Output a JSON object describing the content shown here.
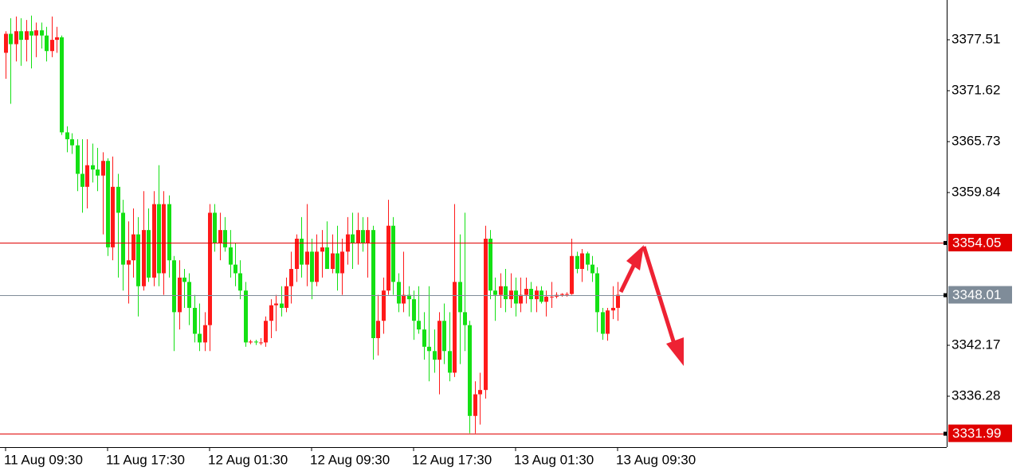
{
  "chart_data": {
    "type": "candlestick",
    "x": [
      "11 Aug 09:30",
      null,
      null,
      null,
      null,
      null,
      null,
      null,
      null,
      null,
      null,
      null,
      null,
      null,
      null,
      null,
      null,
      null,
      null,
      null,
      "11 Aug 17:30",
      null,
      null,
      null,
      null,
      null,
      null,
      null,
      null,
      null,
      null,
      null,
      null,
      null,
      null,
      null,
      null,
      null,
      null,
      null,
      "12 Aug 01:30",
      null,
      null,
      null,
      null,
      null,
      null,
      null,
      null,
      null,
      null,
      null,
      null,
      null,
      null,
      null,
      null,
      null,
      null,
      null,
      "12 Aug 09:30",
      null,
      null,
      null,
      null,
      null,
      null,
      null,
      null,
      null,
      null,
      null,
      null,
      null,
      null,
      null,
      null,
      null,
      null,
      null,
      "12 Aug 17:30",
      null,
      null,
      null,
      null,
      null,
      null,
      null,
      null,
      null,
      null,
      null,
      null,
      null,
      null,
      null,
      null,
      null,
      null,
      null,
      "13 Aug 01:30",
      null,
      null,
      null,
      null,
      null,
      null,
      null,
      null,
      null,
      null,
      null,
      null,
      null,
      null,
      null,
      null,
      null,
      null,
      null,
      "13 Aug 09:30"
    ],
    "open": [
      3376,
      3378.2,
      3377,
      3378.5,
      3377.5,
      3378.5,
      3378,
      3378.6,
      3378,
      3376.2,
      3377.5,
      3377.8,
      3366.8,
      3366,
      3365.3,
      3362,
      3360.5,
      3363,
      3362.5,
      3361.8,
      3363.5,
      3353.5,
      3360.5,
      3357.5,
      3351.5,
      3352,
      3355,
      3349,
      3355.5,
      3350,
      3358.5,
      3350.5,
      3358.5,
      3352,
      3346,
      3350,
      3349.5,
      3346.5,
      3343.5,
      3342.5,
      3344.5,
      3357.5,
      3354,
      3355.5,
      3353.5,
      3351.5,
      3350.5,
      3348.5,
      3342.5,
      3342.6,
      3342.5,
      3342.5,
      3345,
      3346.8,
      3347,
      3346.5,
      3349,
      3351,
      3354.5,
      3351.5,
      3353,
      3349.5,
      3353,
      3353.5,
      3351,
      3352.8,
      3350.5,
      3353,
      3355,
      3354,
      3355.5,
      3354,
      3355.5,
      3343,
      3345,
      3348.5,
      3356,
      3349.5,
      3347,
      3348,
      3347.5,
      3345,
      3344,
      3342,
      3341.5,
      3340.5,
      3345,
      3341.5,
      3339,
      3349.5,
      3346,
      3344.5,
      3334,
      3336.5,
      3337,
      3354.5,
      3348.5,
      3348,
      3349,
      3347.5,
      3348.5,
      3347,
      3348,
      3348.7,
      3347.5,
      3348.5,
      3347.2,
      3347.8,
      3347.8,
      3348,
      3348.1,
      3348.1,
      3352.5,
      3351,
      3352.8,
      3351.5,
      3350.5,
      3346,
      3343.5,
      3346.2,
      3346.5
    ],
    "high": [
      3378.5,
      3380,
      3380.2,
      3380,
      3379.8,
      3380.3,
      3379.5,
      3379.5,
      3379,
      3380.2,
      3379,
      3378,
      3367.5,
      3366.7,
      3366,
      3366,
      3366,
      3365.5,
      3365,
      3364.5,
      3363.8,
      3364,
      3362,
      3359,
      3356.5,
      3358,
      3357,
      3360,
      3358,
      3360,
      3363,
      3360,
      3359.5,
      3352.5,
      3352,
      3351,
      3350.5,
      3348,
      3347,
      3346,
      3358.5,
      3358.5,
      3357.5,
      3357,
      3355.5,
      3354,
      3352,
      3349.5,
      3342.8,
      3342.8,
      3343,
      3345.5,
      3347.5,
      3348,
      3349,
      3350,
      3353,
      3355,
      3357,
      3358.5,
      3354.5,
      3355,
      3355.5,
      3356.5,
      3355,
      3356,
      3354.5,
      3357,
      3357.5,
      3357.5,
      3357,
      3357,
      3356,
      3348,
      3350,
      3359,
      3357,
      3350.5,
      3353,
      3349,
      3348.5,
      3349,
      3346,
      3349,
      3344,
      3346,
      3347,
      3346,
      3358.5,
      3355,
      3357.5,
      3345,
      3338,
      3339,
      3356,
      3355.5,
      3350,
      3350.5,
      3351,
      3350.5,
      3350,
      3350,
      3350,
      3349.5,
      3349,
      3349,
      3348.5,
      3349.5,
      3348.3,
      3348.2,
      3348.3,
      3354.5,
      3353,
      3353.3,
      3353,
      3352.5,
      3351.2,
      3346.5,
      3346.5,
      3349,
      3349.5
    ],
    "low": [
      3373,
      3370.1,
      3375,
      3374.5,
      3375,
      3374.2,
      3375.5,
      3376.5,
      3375,
      3375.5,
      3376,
      3366.5,
      3364.5,
      3364.3,
      3360,
      3357.5,
      3358,
      3361,
      3360,
      3355,
      3352.5,
      3352,
      3350,
      3348.5,
      3347,
      3350,
      3345.5,
      3348.5,
      3349.5,
      3349,
      3349,
      3348,
      3350,
      3341.5,
      3344,
      3346.5,
      3344.5,
      3342.5,
      3341.5,
      3341.5,
      3341.5,
      3353,
      3352,
      3353,
      3350,
      3349,
      3347.5,
      3342,
      3342.3,
      3342.2,
      3342.2,
      3342,
      3343,
      3343.8,
      3345.5,
      3346,
      3347,
      3349.5,
      3350,
      3349,
      3347.5,
      3349,
      3350,
      3351,
      3350.5,
      3348.5,
      3348,
      3351.5,
      3351,
      3351.5,
      3353,
      3350,
      3340.5,
      3341,
      3343.5,
      3348,
      3348,
      3346,
      3346,
      3345.5,
      3342.8,
      3343.5,
      3340.5,
      3338,
      3339,
      3336.5,
      3340,
      3338,
      3338.5,
      3340,
      3341.5,
      3332,
      3331.99,
      3333,
      3336,
      3347.5,
      3345,
      3346.5,
      3346,
      3346.5,
      3345.5,
      3346,
      3347,
      3346,
      3346,
      3347,
      3345.5,
      3346.5,
      3347.6,
      3347.8,
      3347.8,
      3348,
      3350.5,
      3349.5,
      3350.8,
      3349.5,
      3343.7,
      3342.8,
      3342.7,
      3345.2,
      3345
    ],
    "close": [
      3378.2,
      3377,
      3378.5,
      3377.5,
      3378.5,
      3378,
      3378.6,
      3378,
      3376.2,
      3377.5,
      3377.8,
      3366.8,
      3366,
      3365.3,
      3362,
      3360.5,
      3363,
      3362.5,
      3361.8,
      3363.5,
      3353.5,
      3360.5,
      3357.5,
      3351.5,
      3352,
      3355,
      3349,
      3355.5,
      3350,
      3358.5,
      3350.5,
      3358.5,
      3352,
      3346,
      3350,
      3349.5,
      3346.5,
      3343.5,
      3342.5,
      3344.5,
      3357.5,
      3354,
      3355.5,
      3353.5,
      3351.5,
      3350.5,
      3348.5,
      3342.5,
      3342.6,
      3342.5,
      3342.5,
      3345,
      3346.8,
      3347,
      3346.5,
      3349,
      3351,
      3354.5,
      3351.5,
      3353,
      3349.5,
      3353,
      3353.5,
      3351,
      3352.8,
      3350.5,
      3353,
      3355,
      3354,
      3355.5,
      3354,
      3355.5,
      3343,
      3345,
      3348.5,
      3356,
      3349.5,
      3347,
      3348,
      3347.5,
      3345,
      3344,
      3342,
      3341.5,
      3340.5,
      3345,
      3341.5,
      3339,
      3349.5,
      3346,
      3344.5,
      3334,
      3336.5,
      3337,
      3354.5,
      3348.5,
      3348,
      3349,
      3347.5,
      3348.5,
      3347,
      3348,
      3348.7,
      3347.5,
      3348.5,
      3347.2,
      3347.8,
      3347.8,
      3348,
      3348.1,
      3348.1,
      3352.5,
      3351,
      3352.8,
      3351.5,
      3350.5,
      3346,
      3343.5,
      3346.2,
      3346.5,
      3348.01
    ],
    "up_color": "#ff1a1a",
    "down_color": "#14e014",
    "ylim": [
      3330.39,
      3382.11
    ],
    "yticks": [
      3377.51,
      3371.62,
      3365.73,
      3359.84,
      3342.17,
      3336.28
    ],
    "levels": [
      {
        "value": 3354.05,
        "color": "#e00000"
      },
      {
        "value": 3348.01,
        "color": "#7f8c99"
      },
      {
        "value": 3331.99,
        "color": "#e00000"
      }
    ]
  }
}
